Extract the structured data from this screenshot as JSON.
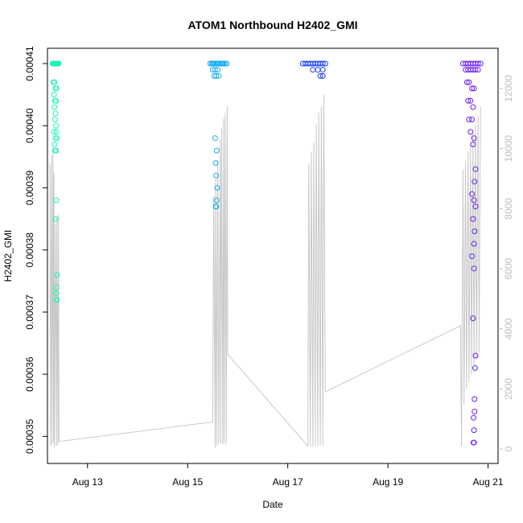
{
  "chart_data": {
    "type": "scatter",
    "title": "ATOM1 Northbound H2402_GMI",
    "xlabel": "Date",
    "ylabel": "H2402_GMI",
    "x_ticks": [
      "Aug 13",
      "Aug 15",
      "Aug 17",
      "Aug 19",
      "Aug 21"
    ],
    "y_ticks_left": [
      "0.00035",
      "0.00036",
      "0.00037",
      "0.00038",
      "0.00039",
      "0.00040",
      "0.00041"
    ],
    "y_ticks_right": [
      "0",
      "2000",
      "4000",
      "6000",
      "8000",
      "10000",
      "12000"
    ],
    "xlim_days": [
      12.2,
      21.2
    ],
    "ylim_left": [
      0.00034875,
      0.00041
    ],
    "ylim_right": [
      0,
      12300
    ],
    "grid": false,
    "colors": {
      "series1": "#19f5b9",
      "series2": "#17aff0",
      "series3": "#1a3cf7",
      "series4": "#6a1ff0",
      "line": "#c8c8c8"
    },
    "series": [
      {
        "x": [
          12.3,
          12.31,
          12.32,
          12.33,
          12.34,
          12.35,
          12.36,
          12.37,
          12.38,
          12.39,
          12.4,
          12.41,
          12.42,
          12.32,
          12.34,
          12.36,
          12.38,
          12.33,
          12.35,
          12.37,
          12.34,
          12.36,
          12.35,
          12.33,
          12.37,
          12.36,
          12.34,
          12.38,
          12.35,
          12.39,
          12.37,
          12.38,
          12.36,
          12.39,
          12.38,
          12.37,
          12.38,
          12.39
        ],
        "y": [
          0.00041,
          0.00041,
          0.00041,
          0.00041,
          0.00041,
          0.00041,
          0.00041,
          0.00041,
          0.00041,
          0.00041,
          0.00041,
          0.00041,
          0.00041,
          0.000407,
          0.000407,
          0.000406,
          0.000406,
          0.000405,
          0.000404,
          0.000404,
          0.000403,
          0.000402,
          0.000401,
          0.000399,
          0.0004,
          0.000398,
          0.000397,
          0.000399,
          0.000396,
          0.000398,
          0.000396,
          0.000388,
          0.000385,
          0.000376,
          0.000374,
          0.000373,
          0.000372,
          0.000372
        ],
        "color": "#19f5b9"
      },
      {
        "x": [
          15.45,
          15.48,
          15.5,
          15.52,
          15.55,
          15.58,
          15.6,
          15.62,
          15.65,
          15.68,
          15.7,
          15.72,
          15.75,
          15.78,
          15.5,
          15.55,
          15.6,
          15.53,
          15.57,
          15.62,
          15.55,
          15.58,
          15.56,
          15.57,
          15.59,
          15.58,
          15.56,
          15.57
        ],
        "y": [
          0.00041,
          0.00041,
          0.00041,
          0.00041,
          0.00041,
          0.00041,
          0.00041,
          0.00041,
          0.00041,
          0.00041,
          0.00041,
          0.00041,
          0.00041,
          0.00041,
          0.000409,
          0.000409,
          0.000409,
          0.000408,
          0.000408,
          0.000408,
          0.000398,
          0.000396,
          0.000394,
          0.000392,
          0.00039,
          0.000388,
          0.000387,
          0.000387
        ],
        "color": "#17aff0"
      },
      {
        "x": [
          17.3,
          17.35,
          17.4,
          17.45,
          17.5,
          17.55,
          17.6,
          17.65,
          17.7,
          17.75,
          17.5,
          17.6,
          17.7,
          17.65,
          17.7
        ],
        "y": [
          0.00041,
          0.00041,
          0.00041,
          0.00041,
          0.00041,
          0.00041,
          0.00041,
          0.00041,
          0.00041,
          0.00041,
          0.000409,
          0.000409,
          0.000409,
          0.000408,
          0.000408
        ],
        "color": "#1a3cf7"
      },
      {
        "x": [
          20.5,
          20.55,
          20.6,
          20.65,
          20.7,
          20.75,
          20.8,
          20.85,
          20.55,
          20.6,
          20.65,
          20.7,
          20.75,
          20.8,
          20.58,
          20.62,
          20.68,
          20.72,
          20.6,
          20.65,
          20.7,
          20.62,
          20.68,
          20.65,
          20.72,
          20.7,
          20.75,
          20.73,
          20.68,
          20.72,
          20.75,
          20.7,
          20.73,
          20.72,
          20.68,
          20.72,
          20.7,
          20.75,
          20.73,
          20.71,
          20.72,
          20.71,
          20.72,
          20.73,
          20.74
        ],
        "y": [
          0.00041,
          0.00041,
          0.00041,
          0.00041,
          0.00041,
          0.00041,
          0.00041,
          0.00041,
          0.000409,
          0.000409,
          0.000409,
          0.000409,
          0.000409,
          0.000409,
          0.000407,
          0.000407,
          0.000406,
          0.000406,
          0.000404,
          0.000404,
          0.000403,
          0.000401,
          0.000401,
          0.000399,
          0.000398,
          0.000397,
          0.000393,
          0.000391,
          0.000389,
          0.000388,
          0.000387,
          0.000385,
          0.000383,
          0.000381,
          0.000379,
          0.000377,
          0.000369,
          0.000363,
          0.000356,
          0.000353,
          0.000351,
          0.000349,
          0.000349,
          0.000354,
          0.000361
        ],
        "color": "#6a1ff0"
      }
    ],
    "line_series": {
      "x": [
        12.25,
        12.26,
        12.28,
        12.29,
        12.31,
        12.32,
        12.33,
        12.34,
        12.36,
        12.38,
        12.39,
        12.41,
        12.42,
        12.43,
        15.5,
        15.52,
        15.55,
        15.56,
        15.58,
        15.6,
        15.62,
        15.65,
        15.66,
        15.68,
        15.7,
        15.72,
        15.73,
        15.75,
        15.77,
        15.79,
        15.8,
        17.4,
        17.42,
        17.45,
        17.47,
        17.5,
        17.52,
        17.55,
        17.57,
        17.6,
        17.62,
        17.65,
        17.67,
        17.7,
        17.72,
        17.75,
        20.45,
        20.47,
        20.5,
        20.52,
        20.55,
        20.57,
        20.6,
        20.62,
        20.65,
        20.67,
        20.7,
        20.72,
        20.75,
        20.77,
        20.8,
        20.82,
        20.85
      ],
      "y": [
        9500,
        100,
        9800,
        150,
        10000,
        200,
        9200,
        50,
        7500,
        100,
        7700,
        150,
        7800,
        250,
        900,
        8400,
        50,
        9000,
        100,
        9600,
        150,
        10300,
        200,
        10700,
        150,
        11000,
        200,
        11200,
        150,
        11400,
        3150,
        100,
        9500,
        80,
        9900,
        90,
        10200,
        100,
        10800,
        110,
        11200,
        120,
        11400,
        130,
        11800,
        1900,
        4100,
        100,
        9300,
        1500,
        9600,
        2000,
        9900,
        2200,
        10200,
        2500,
        10500,
        2800,
        10800,
        3000,
        11100,
        3200,
        11400
      ]
    }
  }
}
